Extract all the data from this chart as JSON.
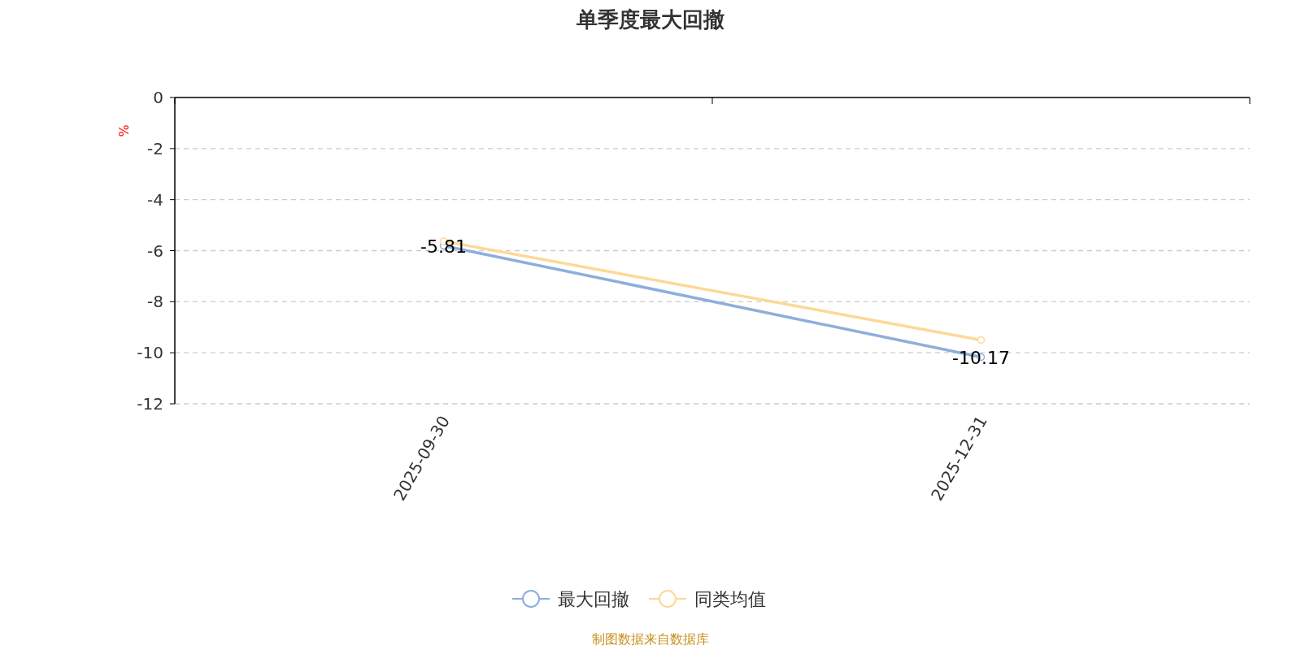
{
  "chart_data": {
    "type": "line",
    "title": "单季度最大回撤",
    "ylabel": "%",
    "categories": [
      "2025-09-30",
      "2025-12-31"
    ],
    "series": [
      {
        "name": "最大回撤",
        "color": "#8eaedb",
        "values": [
          -5.81,
          -10.17
        ],
        "value_labels": [
          "-5.81",
          "-10.17"
        ]
      },
      {
        "name": "同类均值",
        "color": "#fcd996",
        "values": [
          -5.63,
          -9.5
        ]
      }
    ],
    "ylim": [
      -12,
      0
    ],
    "yticks": [
      0,
      -2,
      -4,
      -6,
      -8,
      -10,
      -12
    ],
    "grid": "y",
    "legend": "bottom",
    "marker": "circle",
    "annotations": [
      "制图数据来自数据库"
    ]
  }
}
